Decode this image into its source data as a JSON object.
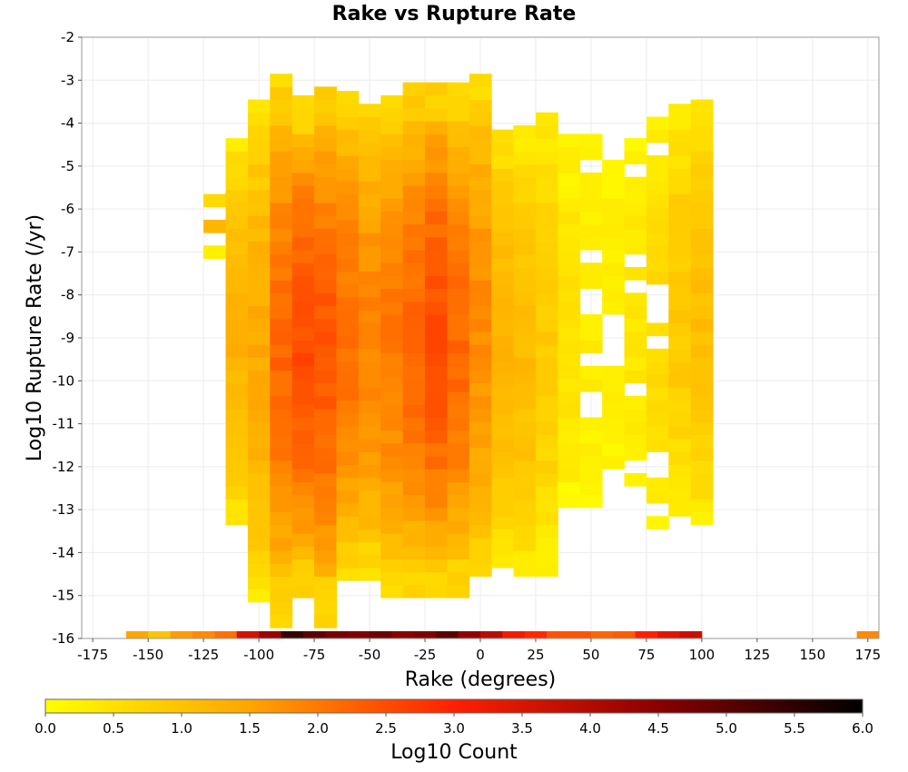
{
  "chart_data": {
    "type": "heatmap",
    "title": "Rake vs Rupture Rate",
    "xlabel": "Rake (degrees)",
    "ylabel": "Log10 Rupture Rate (/yr)",
    "colorbar_label": "Log10 Count",
    "xlim": [
      -180,
      180
    ],
    "ylim": [
      -16,
      -2
    ],
    "x_ticks": [
      -175,
      -150,
      -125,
      -100,
      -75,
      -50,
      -25,
      0,
      25,
      50,
      75,
      100,
      125,
      150,
      175
    ],
    "y_ticks": [
      -2,
      -3,
      -4,
      -5,
      -6,
      -7,
      -8,
      -9,
      -10,
      -11,
      -12,
      -13,
      -14,
      -15,
      -16
    ],
    "colorbar_ticks": [
      "0.0",
      "0.5",
      "1.0",
      "1.5",
      "2.0",
      "2.5",
      "3.0",
      "3.5",
      "4.0",
      "4.5",
      "5.0",
      "5.5",
      "6.0"
    ],
    "colorbar_range": [
      0,
      6
    ],
    "colorscale": [
      "#ffff00",
      "#ffa500",
      "#ff2000",
      "#8b0000",
      "#000000"
    ],
    "grid": true,
    "bin_width_deg": 10,
    "bin_height_log": 0.3,
    "description_of_bins": "x bin centers in degrees; y bin centers in log10 rate; value = log10 count",
    "bottom_row": {
      "y": -16,
      "bins": [
        {
          "x": -155,
          "v": 1.5
        },
        {
          "x": -145,
          "v": 1.0
        },
        {
          "x": -135,
          "v": 1.6
        },
        {
          "x": -125,
          "v": 1.8
        },
        {
          "x": -115,
          "v": 2.1
        },
        {
          "x": -105,
          "v": 3.6
        },
        {
          "x": -95,
          "v": 4.3
        },
        {
          "x": -85,
          "v": 5.4
        },
        {
          "x": -75,
          "v": 5.0
        },
        {
          "x": -65,
          "v": 4.7
        },
        {
          "x": -55,
          "v": 4.6
        },
        {
          "x": -45,
          "v": 4.8
        },
        {
          "x": -35,
          "v": 4.5
        },
        {
          "x": -25,
          "v": 4.6
        },
        {
          "x": -15,
          "v": 5.0
        },
        {
          "x": -5,
          "v": 4.4
        },
        {
          "x": 5,
          "v": 3.9
        },
        {
          "x": 15,
          "v": 3.2
        },
        {
          "x": 25,
          "v": 2.9
        },
        {
          "x": 35,
          "v": 2.4
        },
        {
          "x": 45,
          "v": 2.4
        },
        {
          "x": 55,
          "v": 2.2
        },
        {
          "x": 65,
          "v": 2.3
        },
        {
          "x": 75,
          "v": 3.0
        },
        {
          "x": 85,
          "v": 3.4
        },
        {
          "x": 95,
          "v": 3.7
        },
        {
          "x": 175,
          "v": 1.8
        }
      ]
    },
    "columns": [
      {
        "x": -120,
        "y_min": -7.0,
        "y_max": -5.6,
        "base": 1.1,
        "sparse": true
      },
      {
        "x": -110,
        "y_min": -13.2,
        "y_max": -4.4,
        "base": 1.3
      },
      {
        "x": -100,
        "y_min": -15.0,
        "y_max": -3.6,
        "base": 1.4
      },
      {
        "x": -90,
        "y_min": -15.6,
        "y_max": -3.0,
        "base": 2.2
      },
      {
        "x": -80,
        "y_min": -14.9,
        "y_max": -3.4,
        "base": 2.5
      },
      {
        "x": -70,
        "y_min": -15.6,
        "y_max": -3.2,
        "base": 2.4
      },
      {
        "x": -60,
        "y_min": -14.5,
        "y_max": -3.3,
        "base": 2.1
      },
      {
        "x": -50,
        "y_min": -14.5,
        "y_max": -3.5,
        "base": 1.9
      },
      {
        "x": -40,
        "y_min": -14.9,
        "y_max": -3.5,
        "base": 2.0
      },
      {
        "x": -30,
        "y_min": -14.9,
        "y_max": -3.2,
        "base": 2.2
      },
      {
        "x": -20,
        "y_min": -14.9,
        "y_max": -3.0,
        "base": 2.5
      },
      {
        "x": -10,
        "y_min": -14.9,
        "y_max": -3.2,
        "base": 2.2
      },
      {
        "x": 0,
        "y_min": -14.4,
        "y_max": -3.0,
        "base": 1.8
      },
      {
        "x": 10,
        "y_min": -14.2,
        "y_max": -4.2,
        "base": 1.3
      },
      {
        "x": 20,
        "y_min": -14.4,
        "y_max": -4.2,
        "base": 1.1
      },
      {
        "x": 30,
        "y_min": -14.4,
        "y_max": -3.8,
        "base": 0.9
      },
      {
        "x": 40,
        "y_min": -12.8,
        "y_max": -4.4,
        "base": 0.5
      },
      {
        "x": 50,
        "y_min": -12.8,
        "y_max": -4.4,
        "base": 0.3,
        "sparse": true
      },
      {
        "x": 60,
        "y_min": -12.5,
        "y_max": -4.6,
        "base": 0.3,
        "sparse": true
      },
      {
        "x": 70,
        "y_min": -12.3,
        "y_max": -4.4,
        "base": 0.4,
        "sparse": true
      },
      {
        "x": 80,
        "y_min": -13.3,
        "y_max": -4.0,
        "base": 0.6,
        "sparse": true
      },
      {
        "x": 90,
        "y_min": -13.0,
        "y_max": -3.6,
        "base": 0.9
      },
      {
        "x": 100,
        "y_min": -13.2,
        "y_max": -3.6,
        "base": 1.1
      }
    ]
  }
}
